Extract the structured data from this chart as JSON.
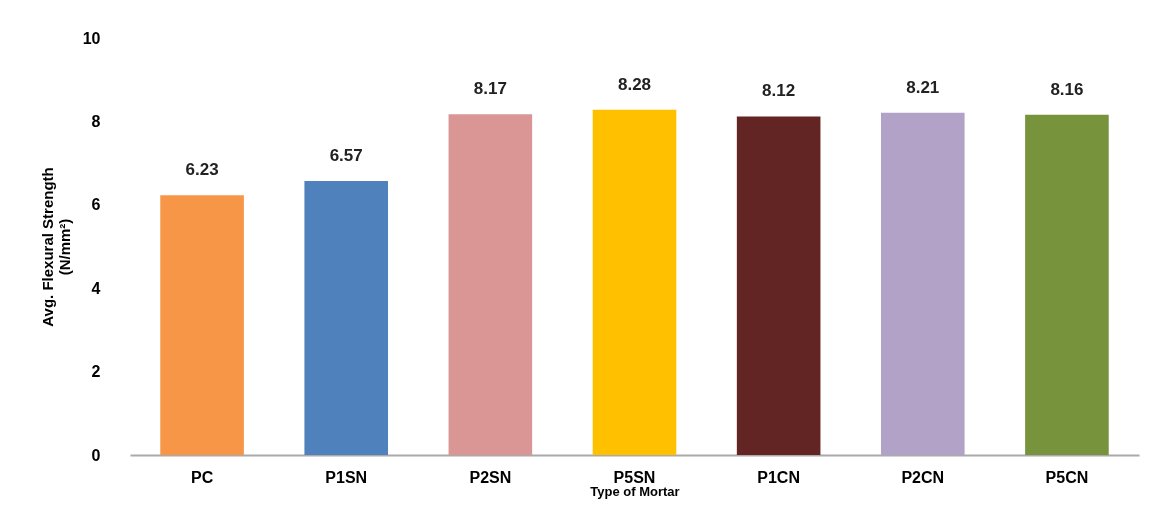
{
  "chart_data": {
    "type": "bar",
    "xlabel": "Type of Mortar",
    "ylabel": "Avg. Flexural Strength\n(N/mm²)",
    "categories": [
      "PC",
      "P1SN",
      "P2SN",
      "P5SN",
      "P1CN",
      "P2CN",
      "P5CN"
    ],
    "values": [
      6.23,
      6.57,
      8.17,
      8.28,
      8.12,
      8.21,
      8.16
    ],
    "colors": [
      "#f79646",
      "#4f81bd",
      "#d99694",
      "#ffc000",
      "#632523",
      "#b3a2c7",
      "#77933c"
    ],
    "ylim": [
      0,
      10
    ],
    "yticks": [
      0,
      2,
      4,
      6,
      8,
      10
    ],
    "grid": false,
    "data_labels": true
  }
}
